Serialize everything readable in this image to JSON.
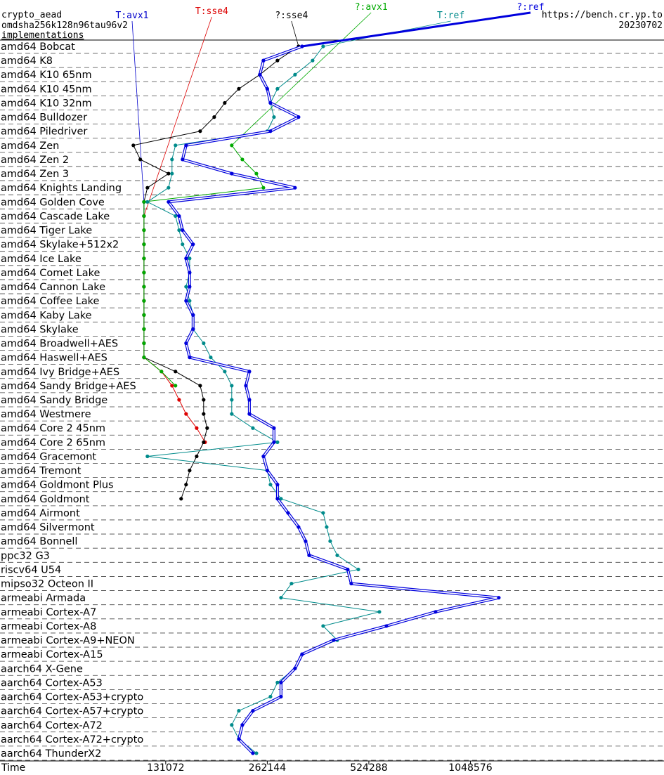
{
  "header": {
    "title": "crypto_aead",
    "primitive": "omdsha256k128n96tau96v2",
    "link": "implementations",
    "url": "https://bench.cr.yp.to",
    "date": "20230702"
  },
  "chart_data": {
    "type": "line",
    "x_label": "Time",
    "xscale": "log",
    "orientation": "horizontal",
    "categories": [
      "amd64 Bobcat",
      "amd64 K8",
      "amd64 K10 65nm",
      "amd64 K10 45nm",
      "amd64 K10 32nm",
      "amd64 Bulldozer",
      "amd64 Piledriver",
      "amd64 Zen",
      "amd64 Zen 2",
      "amd64 Zen 3",
      "amd64 Knights Landing",
      "amd64 Golden Cove",
      "amd64 Cascade Lake",
      "amd64 Tiger Lake",
      "amd64 Skylake+512x2",
      "amd64 Ice Lake",
      "amd64 Comet Lake",
      "amd64 Cannon Lake",
      "amd64 Coffee Lake",
      "amd64 Kaby Lake",
      "amd64 Skylake",
      "amd64 Broadwell+AES",
      "amd64 Haswell+AES",
      "amd64 Ivy Bridge+AES",
      "amd64 Sandy Bridge+AES",
      "amd64 Sandy Bridge",
      "amd64 Westmere",
      "amd64 Core 2 45nm",
      "amd64 Core 2 65nm",
      "amd64 Gracemont",
      "amd64 Tremont",
      "amd64 Goldmont Plus",
      "amd64 Goldmont",
      "amd64 Airmont",
      "amd64 Silvermont",
      "amd64 Bonnell",
      "ppc32 G3",
      "riscv64 U54",
      "mipso32 Octeon II",
      "armeabi Armada",
      "armeabi Cortex-A7",
      "armeabi Cortex-A8",
      "armeabi Cortex-A9+NEON",
      "armeabi Cortex-A15",
      "aarch64 X-Gene",
      "aarch64 Cortex-A53",
      "aarch64 Cortex-A53+crypto",
      "aarch64 Cortex-A57+crypto",
      "aarch64 Cortex-A72",
      "aarch64 Cortex-A72+crypto",
      "aarch64 ThunderX2"
    ],
    "series": [
      {
        "name": "T:avx1",
        "color": "#0000cc",
        "values": [
          null,
          null,
          null,
          null,
          null,
          null,
          null,
          null,
          null,
          null,
          null,
          113000,
          113000,
          null,
          null,
          null,
          null,
          null,
          null,
          null,
          null,
          null,
          null,
          null,
          null,
          null,
          null,
          null,
          null,
          null,
          null,
          null,
          null,
          null,
          null,
          null,
          null,
          null,
          null,
          null,
          null,
          null,
          null,
          null,
          null,
          null,
          null,
          null,
          null,
          null,
          null
        ]
      },
      {
        "name": "T:sse4",
        "color": "#dd0000",
        "values": [
          null,
          null,
          null,
          null,
          null,
          null,
          null,
          null,
          null,
          null,
          null,
          null,
          113000,
          113000,
          113000,
          113000,
          113000,
          113000,
          113000,
          113000,
          113000,
          113000,
          113000,
          127300,
          136800,
          143600,
          150600,
          161900,
          171500,
          null,
          null,
          null,
          null,
          null,
          null,
          null,
          null,
          null,
          null,
          null,
          null,
          null,
          null,
          null,
          null,
          null,
          null,
          null,
          null,
          null,
          null
        ]
      },
      {
        "name": "?:sse4",
        "color": "#000000",
        "values": [
          324500,
          281000,
          249200,
          215900,
          196100,
          182500,
          165800,
          105100,
          110200,
          133600,
          115700,
          113000,
          113000,
          113000,
          113000,
          113000,
          113000,
          113000,
          113000,
          113000,
          113000,
          113000,
          113000,
          140100,
          165800,
          169800,
          169800,
          173900,
          169800,
          161900,
          154300,
          150600,
          145600,
          null,
          null,
          null,
          null,
          null,
          null,
          null,
          null,
          null,
          null,
          null,
          null,
          null,
          null,
          null,
          null,
          null,
          null
        ]
      },
      {
        "name": "?:avx1",
        "color": "#00aa00",
        "values": [
          null,
          null,
          null,
          null,
          null,
          null,
          null,
          205700,
          221100,
          243400,
          255300,
          113000,
          113000,
          113000,
          113000,
          113000,
          113000,
          113000,
          113000,
          113000,
          113000,
          113000,
          113000,
          127300,
          140100,
          null,
          null,
          null,
          null,
          null,
          null,
          null,
          null,
          null,
          null,
          null,
          null,
          null,
          null,
          null,
          null,
          null,
          null,
          null,
          null,
          null,
          null,
          null,
          null,
          null,
          null
        ]
      },
      {
        "name": "T:ref",
        "color": "#008b8b",
        "values": [
          383800,
          357200,
          316800,
          281000,
          267900,
          274400,
          262144,
          140100,
          136800,
          136800,
          133600,
          115700,
          140100,
          143600,
          147000,
          154300,
          154300,
          150600,
          154300,
          158000,
          158000,
          169800,
          178200,
          196100,
          205700,
          205700,
          205700,
          237600,
          281000,
          115700,
          262144,
          267900,
          287900,
          383800,
          393200,
          402700,
          422600,
          487900,
          309300,
          287900,
          563400,
          383800,
          422600,
          332400,
          316800,
          281000,
          267900,
          215900,
          205700,
          215900,
          243400
        ]
      },
      {
        "name": "?:ref",
        "color": "#0000dd",
        "values": [
          332400,
          255300,
          249200,
          262144,
          267900,
          324500,
          267900,
          150600,
          147000,
          205700,
          316800,
          133600,
          143600,
          147000,
          158000,
          150600,
          154300,
          154300,
          150600,
          158000,
          158000,
          150600,
          154300,
          232000,
          226500,
          232000,
          232000,
          274400,
          274400,
          255300,
          262144,
          281000,
          281000,
          302000,
          324500,
          340500,
          348800,
          453900,
          465000,
          1272900,
          826700,
          591100,
          412500,
          332400,
          316800,
          287900,
          287900,
          237600,
          221100,
          215900,
          237600
        ]
      }
    ],
    "xlim": [
      42300,
      3930000
    ],
    "xticks": [
      131072,
      262144,
      524288,
      1048576
    ]
  }
}
